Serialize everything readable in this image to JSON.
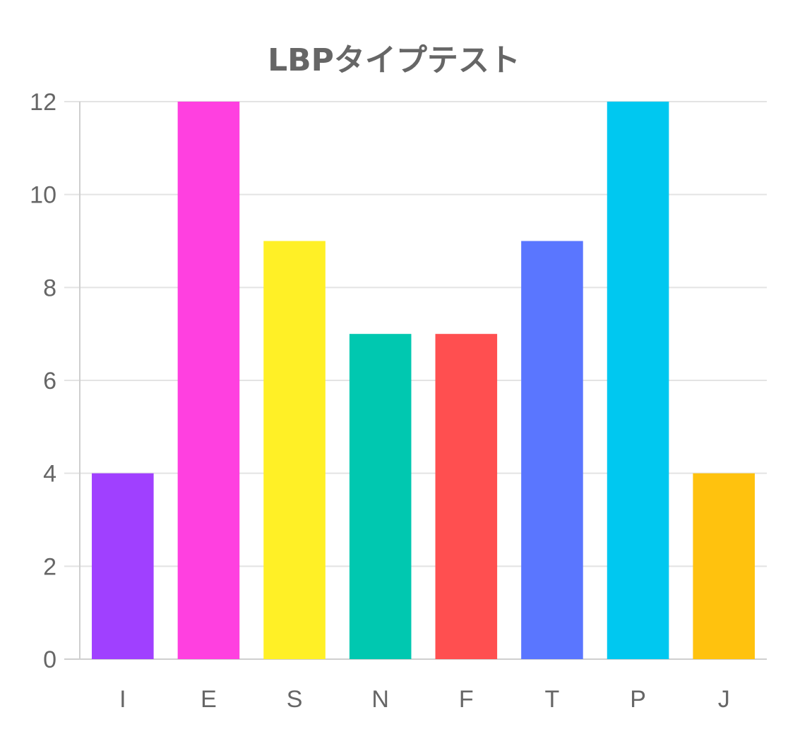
{
  "chart_data": {
    "type": "bar",
    "title": "LBPタイプテスト",
    "xlabel": "",
    "ylabel": "",
    "categories": [
      "I",
      "E",
      "S",
      "N",
      "F",
      "T",
      "P",
      "J"
    ],
    "values": [
      4,
      12,
      9,
      7,
      7,
      9,
      12,
      4
    ],
    "colors": [
      "#a040ff",
      "#ff40e0",
      "#fff026",
      "#00c8b0",
      "#ff4f50",
      "#5a76ff",
      "#00c8f0",
      "#ffc20e"
    ],
    "ylim": [
      0,
      12
    ],
    "yticks": [
      0,
      2,
      4,
      6,
      8,
      10,
      12
    ],
    "grid": true,
    "legend": "none"
  }
}
